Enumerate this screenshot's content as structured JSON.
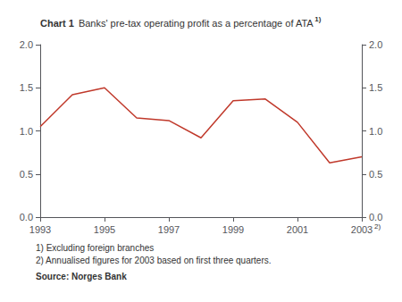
{
  "chart_data": {
    "type": "line",
    "title": "Chart 1",
    "subtitle": "Banks' pre-tax operating profit as a percentage of ATA",
    "annotations": [
      "1)",
      "2)",
      "1) Excluding foreign branches",
      "2) Annualised figures for 2003 based on first three quarters.",
      "Source: Norges Bank"
    ],
    "x": [
      1993,
      1994,
      1995,
      1996,
      1997,
      1998,
      1999,
      2000,
      2001,
      2002,
      2003
    ],
    "values": [
      1.05,
      1.42,
      1.5,
      1.15,
      1.12,
      0.92,
      1.35,
      1.37,
      1.1,
      0.63,
      0.7
    ],
    "color": "#c0392b",
    "xlim": [
      1993,
      2003
    ],
    "xticks": [
      1993,
      1995,
      1997,
      1999,
      2001,
      2003
    ],
    "ylim": [
      0.0,
      2.0
    ],
    "yticks": [
      {
        "value": 0,
        "label": "0.0"
      },
      0.5,
      {
        "value": 1,
        "label": "1.0"
      },
      1.5,
      {
        "value": 2,
        "label": "2.0"
      }
    ],
    "y2lim": [
      0.0,
      2.0
    ],
    "y2ticks": [
      {
        "value": 0,
        "label": "0.0"
      },
      0.5,
      {
        "value": 1,
        "label": "1.0"
      },
      1.5,
      {
        "value": 2,
        "label": "2.0"
      }
    ],
    "grid": false
  }
}
